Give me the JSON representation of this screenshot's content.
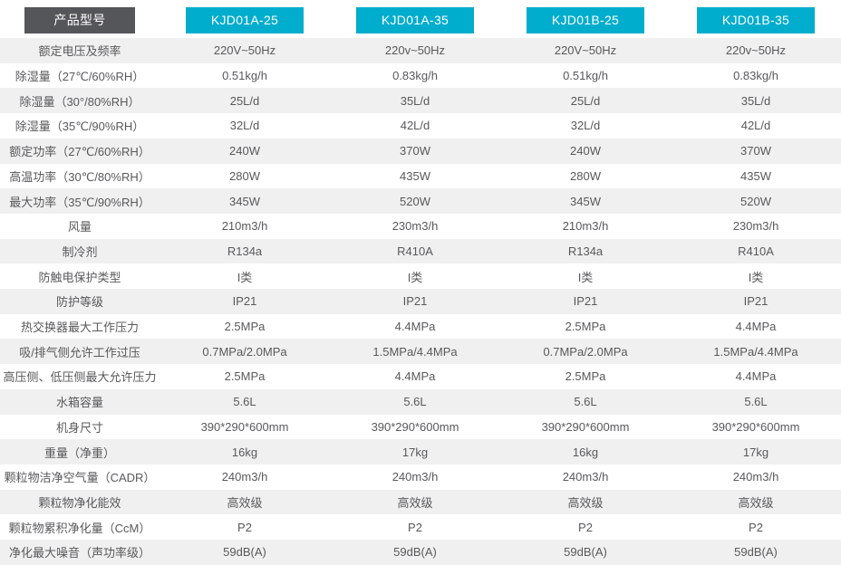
{
  "colors": {
    "header_teal": "#00ADCC",
    "header_dark": "#55565A",
    "row_alt": "#F0F0F0",
    "row_white": "#FFFFFF",
    "cell_text": "#58595B",
    "header_text": "#FFFFFF"
  },
  "header": {
    "label": "产品型号",
    "models": [
      "KJD01A-25",
      "KJD01A-35",
      "KJD01B-25",
      "KJD01B-35"
    ]
  },
  "rows": [
    {
      "label": "额定电压及频率",
      "values": [
        "220V~50Hz",
        "220v~50Hz",
        "220V~50Hz",
        "220v~50Hz"
      ]
    },
    {
      "label": "除湿量（27℃/60%RH）",
      "values": [
        "0.51kg/h",
        "0.83kg/h",
        "0.51kg/h",
        "0.83kg/h"
      ]
    },
    {
      "label": "除湿量（30°/80%RH）",
      "values": [
        "25L/d",
        "35L/d",
        "25L/d",
        "35L/d"
      ]
    },
    {
      "label": "除湿量（35℃/90%RH）",
      "values": [
        "32L/d",
        "42L/d",
        "32L/d",
        "42L/d"
      ]
    },
    {
      "label": "额定功率（27℃/60%RH）",
      "values": [
        "240W",
        "370W",
        "240W",
        "370W"
      ]
    },
    {
      "label": "高温功率（30℃/80%RH）",
      "values": [
        "280W",
        "435W",
        "280W",
        "435W"
      ]
    },
    {
      "label": "最大功率（35℃/90%RH）",
      "values": [
        "345W",
        "520W",
        "345W",
        "520W"
      ]
    },
    {
      "label": "风量",
      "values": [
        "210m3/h",
        "230m3/h",
        "210m3/h",
        "230m3/h"
      ]
    },
    {
      "label": "制冷剂",
      "values": [
        "R134a",
        "R410A",
        "R134a",
        "R410A"
      ]
    },
    {
      "label": "防触电保护类型",
      "values": [
        "I类",
        "I类",
        "I类",
        "I类"
      ]
    },
    {
      "label": "防护等级",
      "values": [
        "IP21",
        "IP21",
        "IP21",
        "IP21"
      ]
    },
    {
      "label": "热交换器最大工作压力",
      "values": [
        "2.5MPa",
        "4.4MPa",
        "2.5MPa",
        "4.4MPa"
      ]
    },
    {
      "label": "吸/排气侧允许工作过压",
      "values": [
        "0.7MPa/2.0MPa",
        "1.5MPa/4.4MPa",
        "0.7MPa/2.0MPa",
        "1.5MPa/4.4MPa"
      ]
    },
    {
      "label": "高压侧、低压侧最大允许压力",
      "values": [
        "2.5MPa",
        "4.4MPa",
        "2.5MPa",
        "4.4MPa"
      ]
    },
    {
      "label": "水箱容量",
      "values": [
        "5.6L",
        "5.6L",
        "5.6L",
        "5.6L"
      ]
    },
    {
      "label": "机身尺寸",
      "values": [
        "390*290*600mm",
        "390*290*600mm",
        "390*290*600mm",
        "390*290*600mm"
      ]
    },
    {
      "label": "重量（净重）",
      "values": [
        "16kg",
        "17kg",
        "16kg",
        "17kg"
      ]
    },
    {
      "label": "颗粒物洁净空气量（CADR）",
      "values": [
        "240m3/h",
        "240m3/h",
        "240m3/h",
        "240m3/h"
      ]
    },
    {
      "label": "颗粒物净化能效",
      "values": [
        "高效级",
        "高效级",
        "高效级",
        "高效级"
      ]
    },
    {
      "label": "颗粒物累积净化量（CcM）",
      "values": [
        "P2",
        "P2",
        "P2",
        "P2"
      ]
    },
    {
      "label": "净化最大噪音（声功率级）",
      "values": [
        "59dB(A)",
        "59dB(A)",
        "59dB(A)",
        "59dB(A)"
      ]
    }
  ]
}
